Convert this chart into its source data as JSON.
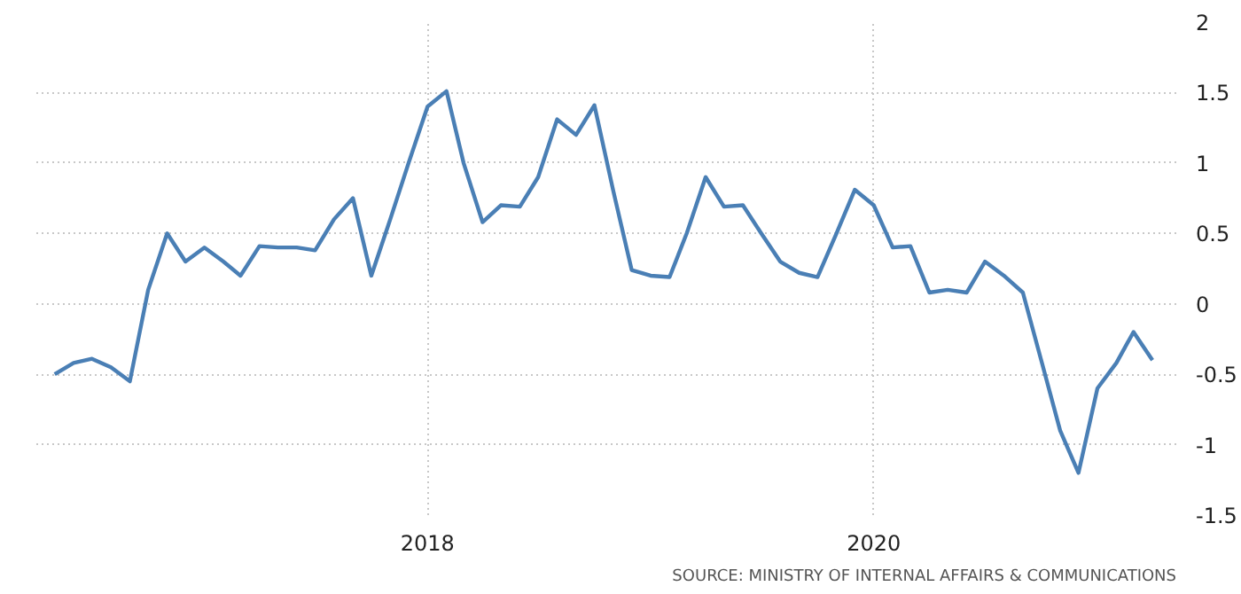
{
  "chart_data": {
    "type": "line",
    "x": [
      "2016-05",
      "2016-06",
      "2016-07",
      "2016-08",
      "2016-09",
      "2016-10",
      "2016-11",
      "2016-12",
      "2017-01",
      "2017-02",
      "2017-03",
      "2017-04",
      "2017-05",
      "2017-06",
      "2017-07",
      "2017-08",
      "2017-09",
      "2017-10",
      "2017-11",
      "2017-12",
      "2018-01",
      "2018-02",
      "2018-03",
      "2018-04",
      "2018-05",
      "2018-06",
      "2018-07",
      "2018-08",
      "2018-09",
      "2018-10",
      "2018-11",
      "2018-12",
      "2019-01",
      "2019-02",
      "2019-03",
      "2019-04",
      "2019-05",
      "2019-06",
      "2019-07",
      "2019-08",
      "2019-09",
      "2019-10",
      "2019-11",
      "2019-12",
      "2020-01",
      "2020-02",
      "2020-03",
      "2020-04",
      "2020-05",
      "2020-06",
      "2020-07",
      "2020-08",
      "2020-09",
      "2020-10",
      "2020-11",
      "2020-12",
      "2021-01",
      "2021-02",
      "2021-03",
      "2021-04"
    ],
    "series": [
      {
        "color": "#4a7fb5",
        "values": [
          -0.5,
          -0.42,
          -0.39,
          -0.45,
          -0.55,
          0.1,
          0.5,
          0.3,
          0.4,
          0.3,
          0.2,
          0.41,
          0.4,
          0.4,
          0.38,
          0.6,
          0.75,
          0.2,
          0.6,
          1.0,
          1.4,
          1.51,
          1.0,
          0.58,
          0.7,
          0.69,
          0.9,
          1.31,
          1.2,
          1.41,
          0.8,
          0.24,
          0.2,
          0.19,
          0.5,
          0.9,
          0.69,
          0.7,
          0.5,
          0.3,
          0.22,
          0.19,
          0.5,
          0.81,
          0.7,
          0.4,
          0.41,
          0.08,
          0.1,
          0.08,
          0.3,
          0.2,
          0.08,
          -0.4,
          -0.9,
          -1.2,
          -0.6,
          -0.42,
          -0.2,
          -0.4
        ]
      }
    ],
    "xlim": [
      "2016-04-01",
      "2021-05-10"
    ],
    "xticks": [
      "2018",
      "2020"
    ],
    "ylim": [
      -1.5,
      2
    ],
    "yticks": [
      2,
      1.5,
      1,
      0.5,
      0,
      -0.5,
      -1,
      -1.5
    ],
    "grid": true,
    "marker": "none",
    "line_style": "solid",
    "annotations": [
      "SOURCE: MINISTRY OF INTERNAL AFFAIRS & COMMUNICATIONS"
    ]
  }
}
